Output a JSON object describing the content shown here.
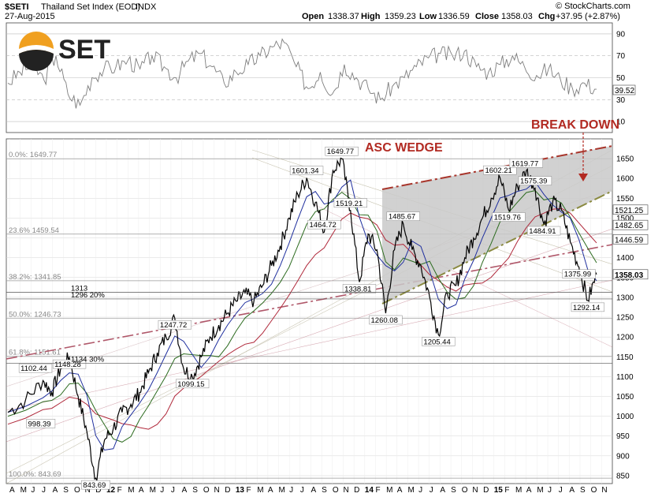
{
  "header": {
    "ticker": "$SETI",
    "name": "Thailand Set Index (EOD)",
    "exchange": "INDX",
    "date": "27-Aug-2015",
    "open_label": "Open",
    "open": "1338.37",
    "high_label": "High",
    "high": "1359.23",
    "low_label": "Low",
    "low": "1336.59",
    "close_label": "Close",
    "close": "1358.03",
    "chg_label": "Chg",
    "chg": "+37.95 (+2.87%)",
    "copyright": "© StockCharts.com",
    "logo_text": "SET"
  },
  "colors": {
    "price": "#000000",
    "ma_blue": "#1f2f9e",
    "ma_green": "#2c6b1f",
    "ma_red": "#b0283a",
    "trend_red": "#a8362c",
    "olive": "#8a8a40",
    "wedge_fill": "#c9c9c9",
    "rsi": "#7d7d7d",
    "break_red": "#b22a22",
    "logo_orange": "#f0a020"
  },
  "chart_data": [
    {
      "type": "line",
      "title": "Thailand Set Index (EOD)",
      "ylim": [
        830,
        1700
      ],
      "y_ticks": [
        "850",
        "900",
        "950",
        "1000",
        "1050",
        "1100",
        "1150",
        "1200",
        "1250",
        "1300",
        "1350",
        "1400",
        "1450",
        "1500",
        "1550",
        "1600",
        "1650"
      ],
      "x_ticks": [
        "A",
        "M",
        "J",
        "J",
        "A",
        "S",
        "O",
        "N",
        "D",
        "12",
        "F",
        "M",
        "A",
        "M",
        "J",
        "J",
        "A",
        "S",
        "O",
        "N",
        "D",
        "13",
        "F",
        "M",
        "A",
        "M",
        "J",
        "J",
        "A",
        "S",
        "O",
        "N",
        "D",
        "14",
        "F",
        "M",
        "A",
        "M",
        "J",
        "J",
        "A",
        "S",
        "O",
        "N",
        "D",
        "15",
        "F",
        "M",
        "A",
        "M",
        "J",
        "J",
        "A",
        "S",
        "O",
        "N"
      ],
      "x_year_labels": [
        "12",
        "13",
        "14",
        "15"
      ],
      "price_points": [
        [
          0,
          1010
        ],
        [
          2,
          1040
        ],
        [
          4,
          1090
        ],
        [
          5,
          1060
        ],
        [
          6,
          1120
        ],
        [
          7,
          1148.28
        ],
        [
          8,
          1050
        ],
        [
          9,
          960
        ],
        [
          10,
          843.69
        ],
        [
          11,
          940
        ],
        [
          12,
          970
        ],
        [
          13,
          1010
        ],
        [
          14,
          1030
        ],
        [
          15,
          1060
        ],
        [
          16,
          1110
        ],
        [
          17,
          1160
        ],
        [
          18,
          1200
        ],
        [
          19,
          1247.72
        ],
        [
          20,
          1120
        ],
        [
          21,
          1099.15
        ],
        [
          22,
          1150
        ],
        [
          23,
          1200
        ],
        [
          24,
          1230
        ],
        [
          25,
          1260
        ],
        [
          26,
          1290
        ],
        [
          27,
          1310
        ],
        [
          28,
          1290
        ],
        [
          29,
          1330
        ],
        [
          30,
          1380
        ],
        [
          31,
          1430
        ],
        [
          32,
          1500
        ],
        [
          33,
          1560
        ],
        [
          34,
          1601.34
        ],
        [
          35,
          1540
        ],
        [
          36,
          1464.72
        ],
        [
          37,
          1620
        ],
        [
          38,
          1649.77
        ],
        [
          39,
          1519.21
        ],
        [
          40,
          1338.81
        ],
        [
          41,
          1460
        ],
        [
          42,
          1420
        ],
        [
          43,
          1260.08
        ],
        [
          44,
          1420
        ],
        [
          45,
          1485.67
        ],
        [
          46,
          1420
        ],
        [
          47,
          1380
        ],
        [
          48,
          1300
        ],
        [
          49,
          1205.44
        ],
        [
          50,
          1310
        ],
        [
          51,
          1330
        ],
        [
          52,
          1400
        ],
        [
          53,
          1450
        ],
        [
          54,
          1500
        ],
        [
          55,
          1550
        ],
        [
          56,
          1602.21
        ],
        [
          57,
          1519.76
        ],
        [
          58,
          1580
        ],
        [
          59,
          1619.77
        ],
        [
          60,
          1575.39
        ],
        [
          61,
          1484.91
        ],
        [
          62,
          1540
        ],
        [
          63,
          1520
        ],
        [
          64,
          1440
        ],
        [
          65,
          1375.99
        ],
        [
          66,
          1292.14
        ],
        [
          67,
          1358.03
        ]
      ],
      "series": [
        {
          "name": "Price",
          "values_ref": "price_points"
        },
        {
          "name": "MA blue (short)",
          "values": []
        },
        {
          "name": "MA green (mid)",
          "values": []
        },
        {
          "name": "MA red (long)",
          "values": []
        }
      ],
      "price_labels": [
        "1102.44",
        "1148.28",
        "998.39",
        "843.69",
        "1247.72",
        "1099.15",
        "1601.34",
        "1649.77",
        "1464.72",
        "1519.21",
        "1338.81",
        "1260.08",
        "1485.67",
        "1205.44",
        "1602.21",
        "1619.77",
        "1519.76",
        "1575.39",
        "1484.91",
        "1375.99",
        "1292.14"
      ],
      "levels": [
        {
          "label": "0.0%: 1649.77",
          "value": 1649.77
        },
        {
          "label": "23.6% 1459.54",
          "value": 1459.54
        },
        {
          "label": "38.2%: 1341.85",
          "value": 1341.85
        },
        {
          "label": "50.0%: 1246.73",
          "value": 1246.73
        },
        {
          "label": "61.8%: 1151.61",
          "value": 1151.61
        },
        {
          "label": "100.0%: 843.69",
          "value": 843.69
        }
      ],
      "support_lines": [
        {
          "label": "1313",
          "value": 1313
        },
        {
          "label": "1296  20%",
          "value": 1296
        },
        {
          "label": "1134  30%",
          "value": 1134
        }
      ],
      "right_labels": [
        "1521.25",
        "1482.65",
        "1446.59",
        "1358.03"
      ],
      "annotations": [
        "ASC WEDGE",
        "BREAK DOWN"
      ]
    },
    {
      "type": "line",
      "title": "RSI",
      "ylim": [
        0,
        100
      ],
      "y_ticks": [
        "10",
        "30",
        "50",
        "70",
        "90"
      ],
      "last_value": "39.52",
      "values": [
        45,
        55,
        62,
        48,
        70,
        35,
        25,
        50,
        58,
        60,
        66,
        58,
        70,
        60,
        50,
        65,
        72,
        60,
        45,
        55,
        62,
        70,
        78,
        82,
        60,
        40,
        55,
        35,
        62,
        50,
        40,
        30,
        42,
        50,
        60,
        68,
        72,
        70,
        74,
        60,
        55,
        62,
        70,
        60,
        52,
        58,
        48,
        40,
        45,
        39.52
      ]
    }
  ]
}
